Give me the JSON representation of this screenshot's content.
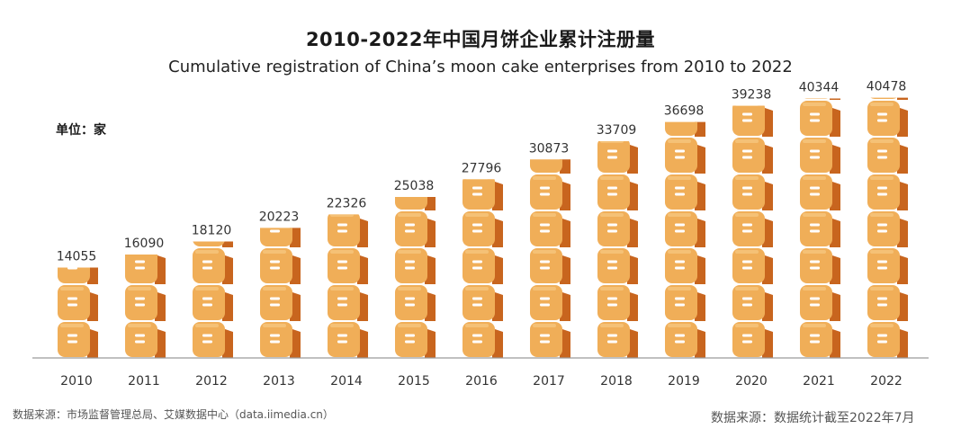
{
  "header": {
    "title": "2010-2022年中国月饼企业累计注册量",
    "subtitle": "Cumulative registration of China’s moon cake enterprises from 2010 to 2022",
    "unit": "单位：家"
  },
  "footer": {
    "source_left": "数据来源：市场监督管理总局、艾媒数据中心（data.iimedia.cn）",
    "source_right": "数据来源：数据统计截至2022年7月"
  },
  "colors": {
    "cake_front": "#f0ae58",
    "cake_side": "#c8651e",
    "cake_top": "#f7c983",
    "cake_mark": "#ffffff",
    "axis": "#9a9a9a"
  },
  "chart_data": {
    "type": "bar",
    "categories": [
      "2010",
      "2011",
      "2012",
      "2013",
      "2014",
      "2015",
      "2016",
      "2017",
      "2018",
      "2019",
      "2020",
      "2021",
      "2022"
    ],
    "values": [
      14055,
      16090,
      18120,
      20223,
      22326,
      25038,
      27796,
      30873,
      33709,
      36698,
      39238,
      40344,
      40478
    ],
    "title": "2010-2022年中国月饼企业累计注册量",
    "subtitle": "Cumulative registration of China’s moon cake enterprises from 2010 to 2022",
    "xlabel": "",
    "ylabel": "单位：家",
    "ylim": [
      0,
      45000
    ],
    "grid": false,
    "legend": "none",
    "mark": "stacked moon cake icons"
  }
}
